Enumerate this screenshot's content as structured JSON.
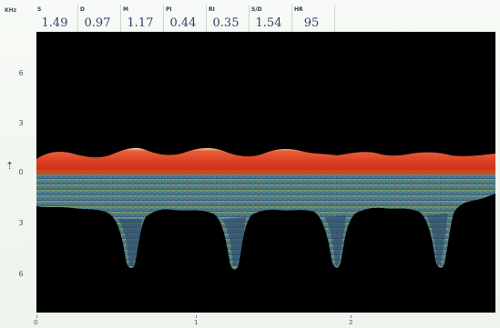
{
  "header": {
    "units": "KHz",
    "metrics": [
      {
        "label": "S",
        "value": "1.49"
      },
      {
        "label": "D",
        "value": "0.97"
      },
      {
        "label": "M",
        "value": "1.17"
      },
      {
        "label": "PI",
        "value": "0.44"
      },
      {
        "label": "RI",
        "value": "0.35"
      },
      {
        "label": "S/D",
        "value": "1.54"
      },
      {
        "label": "HR",
        "value": "95"
      }
    ]
  },
  "y_axis": {
    "ticks": [
      "6",
      "3",
      "0",
      "3",
      "6"
    ]
  },
  "x_axis": {
    "ticks": [
      "0",
      "1",
      "2"
    ]
  },
  "cursor_marker": "⇡",
  "colors": {
    "background": "#000000",
    "forward_flow": "#d8391e",
    "reverse_flow": "#3c6f8c",
    "baseline": "#c94a1f"
  }
}
